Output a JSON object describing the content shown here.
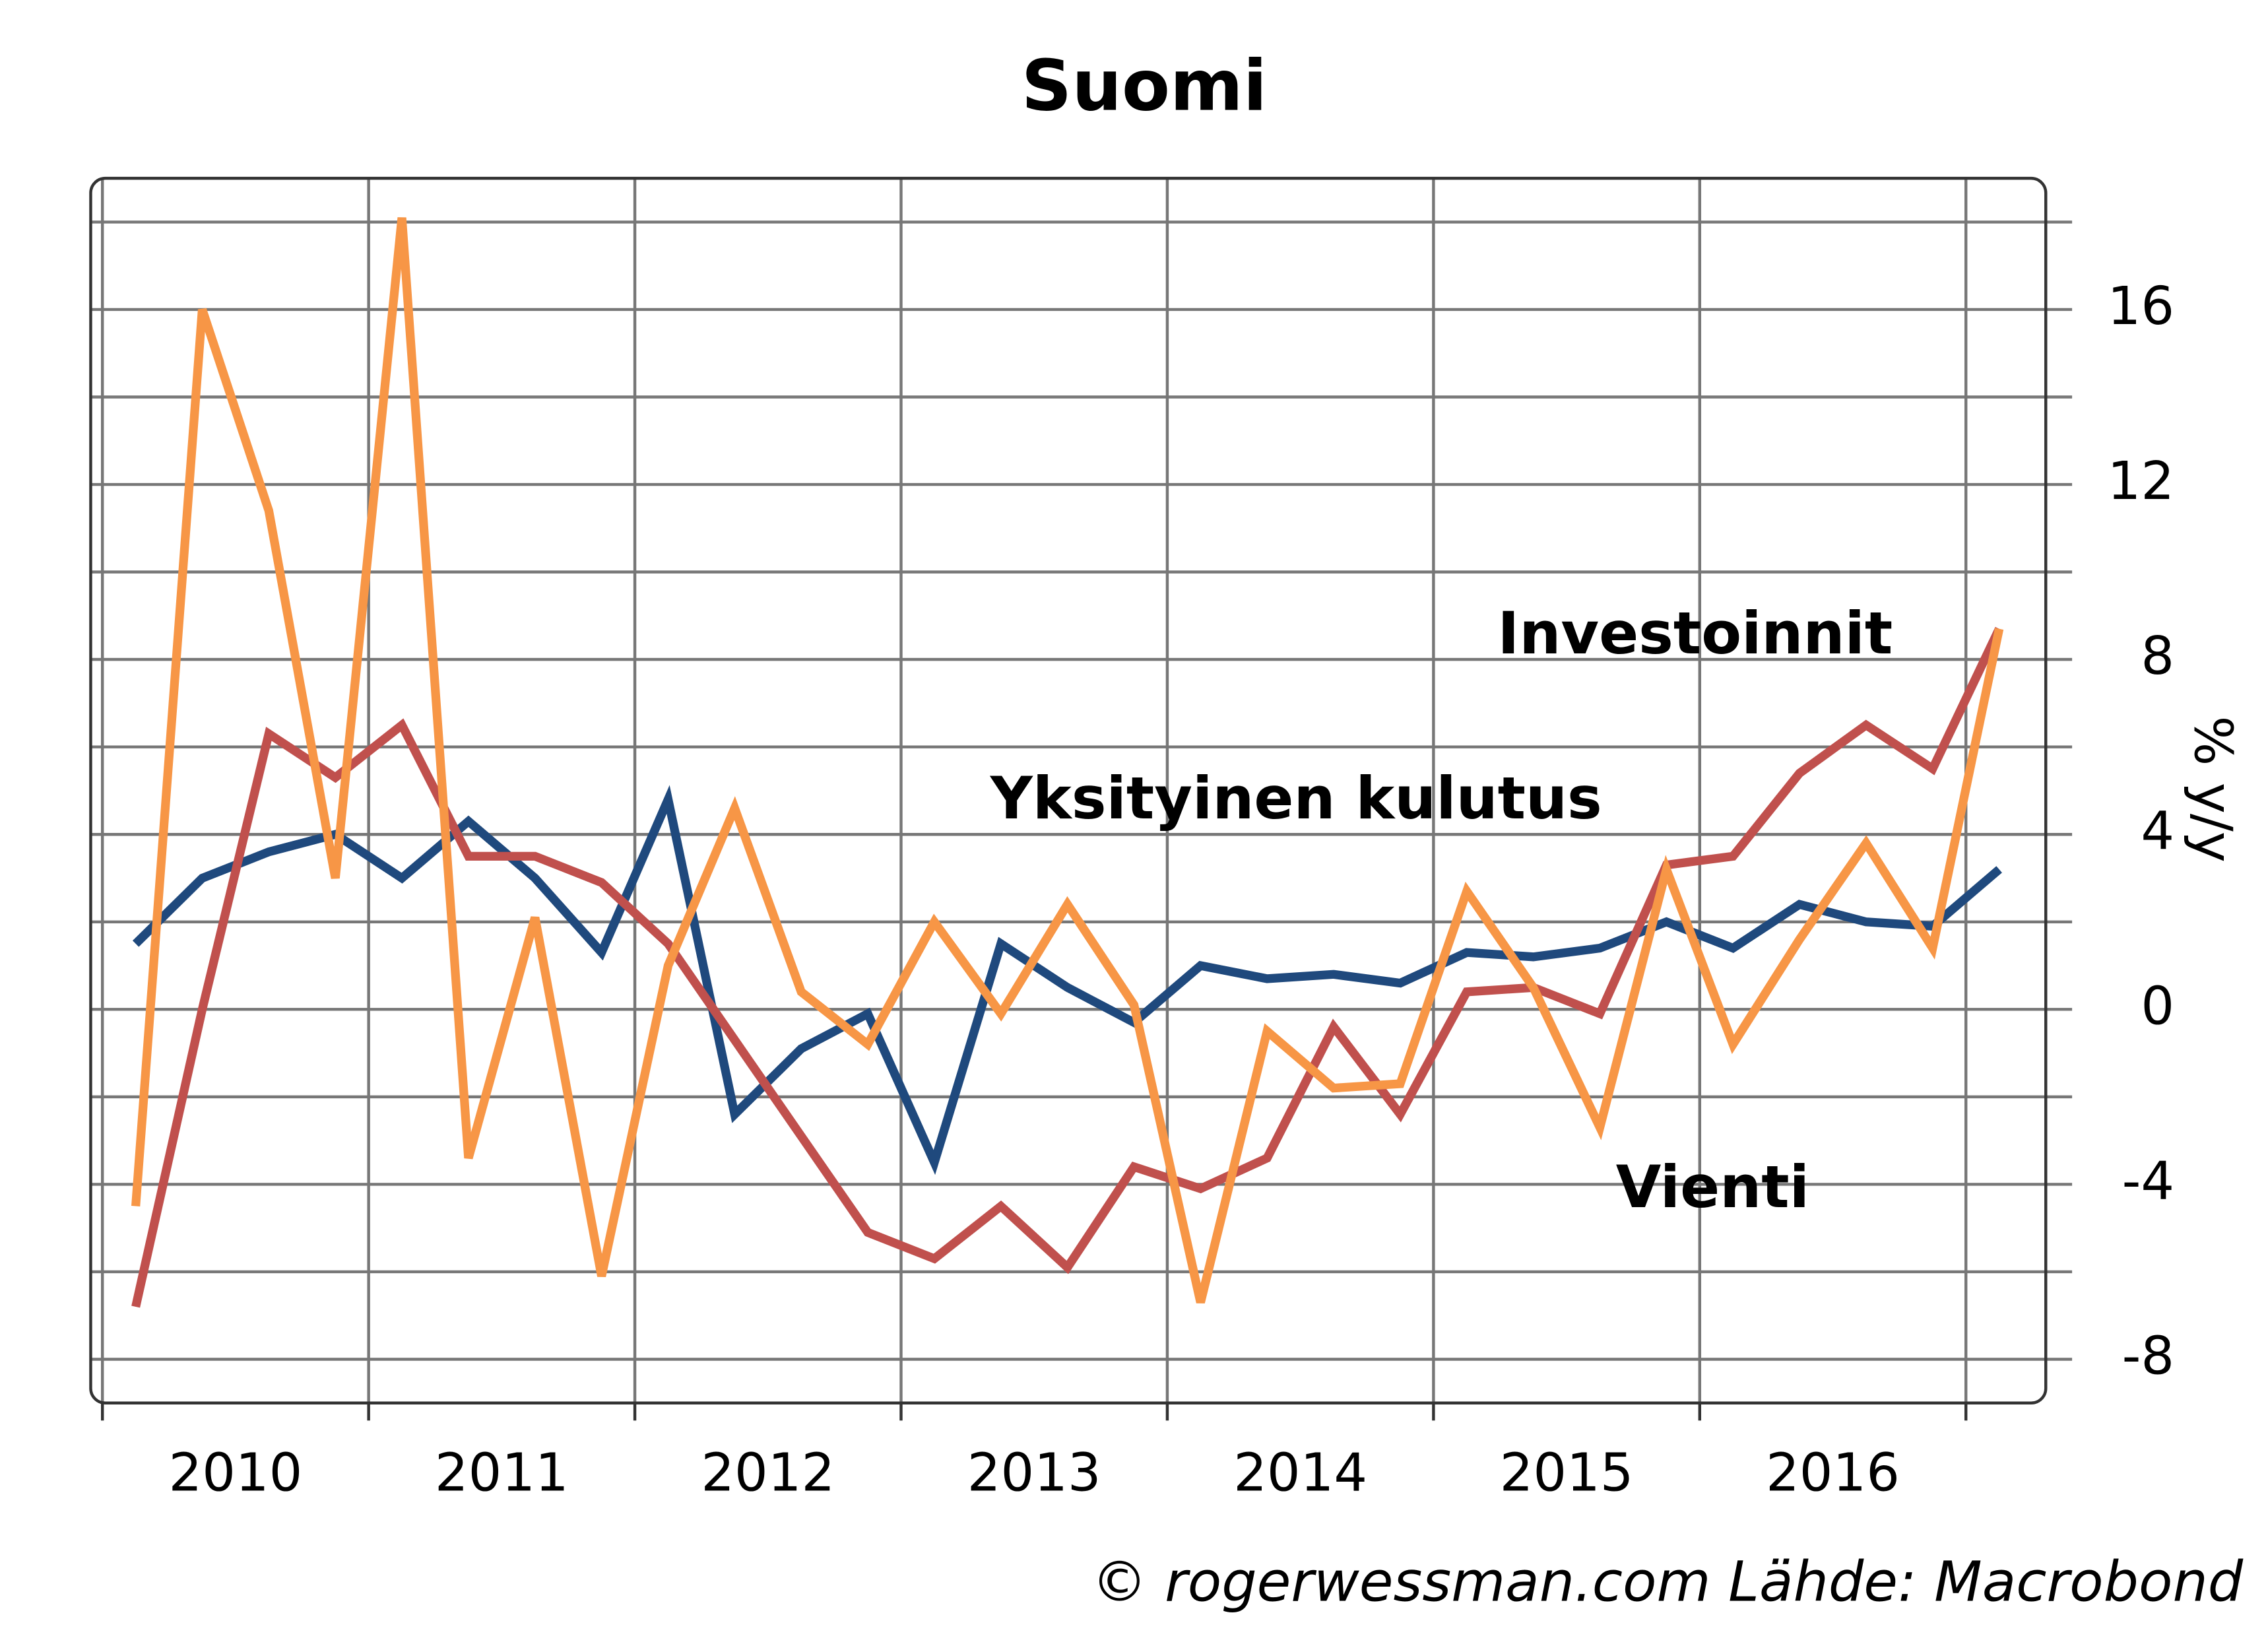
{
  "chart_data": {
    "type": "line",
    "title": "Suomi",
    "y_label": "% y/y",
    "credit": "© rogerwessman.com Lähde: Macrobond",
    "x": [
      2010.125,
      2010.375,
      2010.625,
      2010.875,
      2011.125,
      2011.375,
      2011.625,
      2011.875,
      2012.125,
      2012.375,
      2012.625,
      2012.875,
      2013.125,
      2013.375,
      2013.625,
      2013.875,
      2014.125,
      2014.375,
      2014.625,
      2014.875,
      2015.125,
      2015.375,
      2015.625,
      2015.875,
      2016.125,
      2016.375,
      2016.625,
      2016.875,
      2017.125
    ],
    "series": [
      {
        "name": "Yksityinen kulutus",
        "color": "#1f497d",
        "values": [
          1.5,
          3.0,
          3.6,
          4.0,
          3.0,
          4.3,
          3.0,
          1.3,
          4.8,
          -2.4,
          -0.9,
          -0.1,
          -3.5,
          1.5,
          0.5,
          -0.3,
          1.0,
          0.7,
          0.8,
          0.6,
          1.3,
          1.2,
          1.4,
          2.0,
          1.4,
          2.4,
          2.0,
          1.9,
          3.2
        ]
      },
      {
        "name": "Investoinnit",
        "color": "#c0504d",
        "values": [
          -6.8,
          0.0,
          6.3,
          5.3,
          6.5,
          3.5,
          3.5,
          2.9,
          1.5,
          -0.7,
          -2.9,
          -5.1,
          -5.7,
          -4.5,
          -5.9,
          -3.6,
          -4.1,
          -3.4,
          -0.4,
          -2.4,
          0.4,
          0.5,
          -0.1,
          3.3,
          3.5,
          5.4,
          6.5,
          5.5,
          8.7
        ]
      },
      {
        "name": "Vienti",
        "color": "#f79646",
        "values": [
          -4.5,
          16.0,
          11.4,
          3.0,
          18.1,
          -3.4,
          2.1,
          -6.1,
          1.0,
          4.6,
          0.4,
          -0.8,
          2.0,
          -0.1,
          2.4,
          0.1,
          -6.7,
          -0.5,
          -1.8,
          -1.7,
          2.7,
          0.5,
          -2.7,
          3.2,
          -0.8,
          1.6,
          3.8,
          1.4,
          8.7
        ]
      }
    ],
    "xlim": [
      2009.956,
      2017.3
    ],
    "xticks": [
      2010,
      2011,
      2012,
      2013,
      2014,
      2015,
      2016,
      2017
    ],
    "xticklabels": [
      "2010",
      "2011",
      "2012",
      "2013",
      "2014",
      "2015",
      "2016"
    ],
    "ylim": [
      -9,
      19
    ],
    "yticks": [
      -8,
      -4,
      0,
      4,
      8,
      12,
      16
    ],
    "yminorticks": [
      -6,
      -2,
      2,
      6,
      10,
      14,
      18
    ],
    "grid": true
  }
}
